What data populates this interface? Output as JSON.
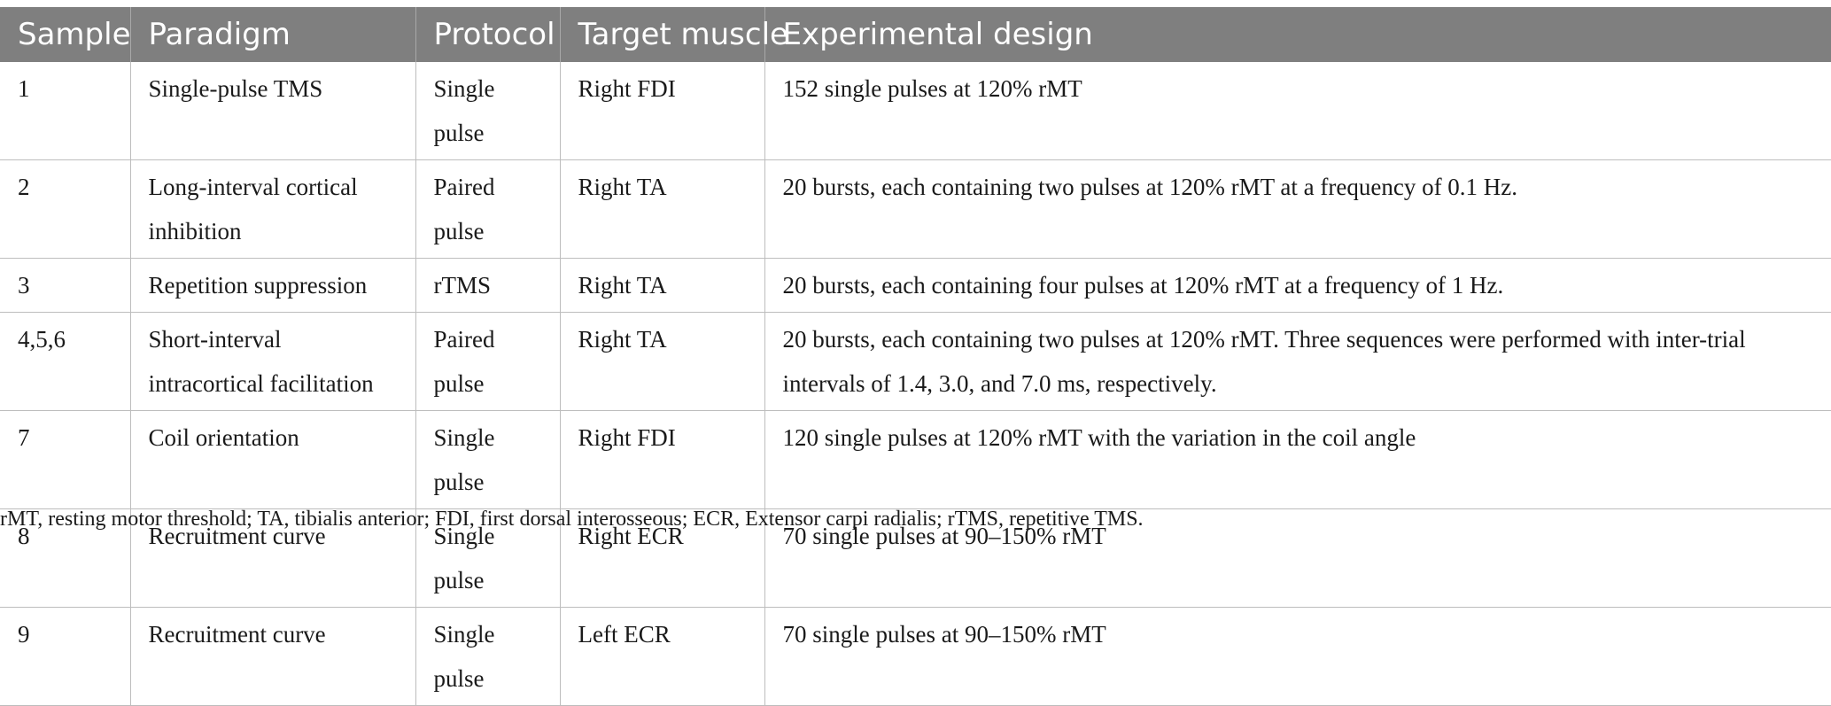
{
  "table": {
    "headers": [
      "Sample",
      "Paradigm",
      "Protocol",
      "Target muscle",
      "Experimental design"
    ],
    "rows": [
      [
        "1",
        "Single-pulse TMS",
        "Single pulse",
        "Right FDI",
        "152 single pulses at 120% rMT"
      ],
      [
        "2",
        "Long-interval cortical inhibition",
        "Paired pulse",
        "Right TA",
        "20 bursts, each containing two pulses at 120% rMT at a frequency of 0.1 Hz."
      ],
      [
        "3",
        "Repetition suppression",
        "rTMS",
        "Right TA",
        "20 bursts, each containing four pulses at 120% rMT at a frequency of 1 Hz."
      ],
      [
        "4,5,6",
        "Short-interval intracortical facilitation",
        "Paired pulse",
        "Right TA",
        "20 bursts, each containing two pulses at 120% rMT. Three sequences were performed with inter-trial intervals of 1.4, 3.0, and 7.0 ms, respectively."
      ],
      [
        "7",
        "Coil orientation",
        "Single pulse",
        "Right FDI",
        "120 single pulses at 120% rMT with the variation in the coil angle"
      ],
      [
        "8",
        "Recruitment curve",
        "Single pulse",
        "Right ECR",
        "70 single pulses at 90–150% rMT"
      ],
      [
        "9",
        "Recruitment curve",
        "Single pulse",
        "Left ECR",
        "70 single pulses at 90–150% rMT"
      ]
    ]
  },
  "footnote": "rMT, resting motor threshold; TA, tibialis anterior; FDI, first dorsal interosseous; ECR, Extensor carpi radialis; rTMS, repetitive TMS."
}
